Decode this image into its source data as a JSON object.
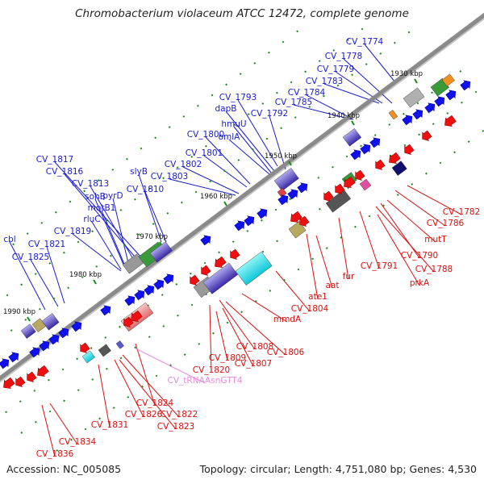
{
  "title": "Chromobacterium violaceum ATCC 12472, complete genome",
  "footer": {
    "accession": "Accession: NC_005085",
    "topology": "Topology: circular; Length: 4,751,080 bp; Genes: 4,530"
  },
  "colors": {
    "forward_label": "#1a1acc",
    "reverse_label": "#d81010",
    "trna_label": "#e58de0",
    "axis": "#8a8a8a",
    "tick": "#1a8a1a",
    "forward_gene": "#1010ee",
    "reverse_gene": "#ee1010"
  },
  "ticks": [
    "1930 kbp",
    "1940 kbp",
    "1950 kbp",
    "1960 kbp",
    "1970 kbp",
    "1980 kbp",
    "1990 kbp"
  ],
  "forward_labels": [
    "CV_1774",
    "CV_1778",
    "CV_1779",
    "CV_1783",
    "CV_1784",
    "CV_1785",
    "CV_1792",
    "CV_1793",
    "dapB",
    "hmuU",
    "omlA",
    "CV_1800",
    "CV_1801",
    "CV_1802",
    "CV_1803",
    "slyB",
    "CV_1810",
    "CV_1817",
    "CV_1816",
    "CV_1813",
    "pyrD",
    "sohB",
    "motB1",
    "rluC",
    "CV_1819",
    "cbl",
    "CV_1821",
    "CV_1825"
  ],
  "reverse_labels": [
    "CV_1782",
    "CV_1786",
    "mutT",
    "CV_1790",
    "CV_1788",
    "CV_1791",
    "prkA",
    "fur",
    "aat",
    "ate1",
    "CV_1804",
    "mmdA",
    "CV_1806",
    "CV_1808",
    "CV_1807",
    "CV_1809",
    "CV_1820",
    "CV_1824",
    "CV_1822",
    "CV_1823",
    "CV_1826",
    "CV_1831",
    "CV_1834",
    "CV_1836"
  ],
  "trna_labels": [
    "CV_tRNAAsnGTT4"
  ]
}
